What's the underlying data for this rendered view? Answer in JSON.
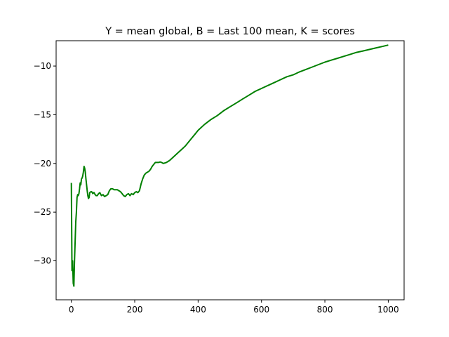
{
  "chart_data": {
    "type": "line",
    "title": "Y = mean global, B = Last 100 mean, K = scores",
    "xlabel": "",
    "ylabel": "",
    "xlim": [
      -48,
      1050
    ],
    "ylim": [
      -34,
      -7.4
    ],
    "x_ticks": [
      0,
      200,
      400,
      600,
      800,
      1000
    ],
    "y_ticks": [
      -30,
      -25,
      -20,
      -15,
      -10
    ],
    "x_tick_labels": [
      "0",
      "200",
      "400",
      "600",
      "800",
      "1000"
    ],
    "y_tick_labels": [
      "−30",
      "−25",
      "−20",
      "−15",
      "−10"
    ],
    "grid": false,
    "legend": "none",
    "series": [
      {
        "color": "#008000",
        "x": [
          0,
          2,
          4,
          6,
          8,
          10,
          12,
          14,
          16,
          18,
          20,
          22,
          24,
          26,
          28,
          30,
          32,
          34,
          36,
          38,
          40,
          42,
          44,
          46,
          48,
          50,
          52,
          54,
          56,
          58,
          60,
          62,
          64,
          66,
          68,
          70,
          72,
          75,
          78,
          82,
          86,
          90,
          95,
          100,
          105,
          110,
          115,
          120,
          125,
          130,
          135,
          140,
          145,
          150,
          155,
          160,
          165,
          170,
          175,
          180,
          185,
          190,
          195,
          200,
          205,
          210,
          215,
          220,
          225,
          230,
          235,
          240,
          245,
          250,
          255,
          260,
          265,
          270,
          275,
          280,
          285,
          290,
          300,
          310,
          320,
          330,
          340,
          350,
          360,
          370,
          380,
          390,
          400,
          420,
          440,
          460,
          480,
          500,
          520,
          540,
          560,
          580,
          600,
          620,
          640,
          660,
          680,
          700,
          720,
          740,
          760,
          780,
          800,
          820,
          840,
          860,
          880,
          900,
          920,
          940,
          960,
          980,
          1000
        ],
        "values": [
          -22.0,
          -31.0,
          -30.0,
          -32.3,
          -32.6,
          -30.0,
          -28.0,
          -26.0,
          -25.0,
          -23.5,
          -23.2,
          -23.3,
          -23.1,
          -22.6,
          -22.0,
          -22.2,
          -21.6,
          -21.5,
          -21.3,
          -20.9,
          -20.3,
          -20.5,
          -20.9,
          -21.6,
          -22.2,
          -22.8,
          -23.3,
          -23.6,
          -23.5,
          -23.0,
          -22.95,
          -22.9,
          -22.9,
          -23.0,
          -23.1,
          -23.0,
          -23.0,
          -23.2,
          -23.3,
          -23.3,
          -23.1,
          -23.0,
          -23.3,
          -23.2,
          -23.4,
          -23.3,
          -23.2,
          -22.8,
          -22.6,
          -22.6,
          -22.7,
          -22.7,
          -22.7,
          -22.8,
          -22.9,
          -23.1,
          -23.3,
          -23.4,
          -23.2,
          -23.1,
          -23.3,
          -23.1,
          -23.2,
          -23.0,
          -22.9,
          -23.0,
          -22.8,
          -22.1,
          -21.6,
          -21.2,
          -21.0,
          -20.9,
          -20.8,
          -20.6,
          -20.3,
          -20.1,
          -19.9,
          -19.9,
          -19.9,
          -19.85,
          -19.9,
          -20.0,
          -19.9,
          -19.7,
          -19.4,
          -19.1,
          -18.8,
          -18.5,
          -18.2,
          -17.8,
          -17.4,
          -17.0,
          -16.6,
          -16.0,
          -15.5,
          -15.1,
          -14.6,
          -14.2,
          -13.8,
          -13.4,
          -13.0,
          -12.6,
          -12.3,
          -12.0,
          -11.7,
          -11.4,
          -11.1,
          -10.9,
          -10.6,
          -10.35,
          -10.1,
          -9.85,
          -9.6,
          -9.4,
          -9.2,
          -9.0,
          -8.8,
          -8.6,
          -8.45,
          -8.3,
          -8.15,
          -8.0,
          -7.85
        ]
      }
    ]
  }
}
